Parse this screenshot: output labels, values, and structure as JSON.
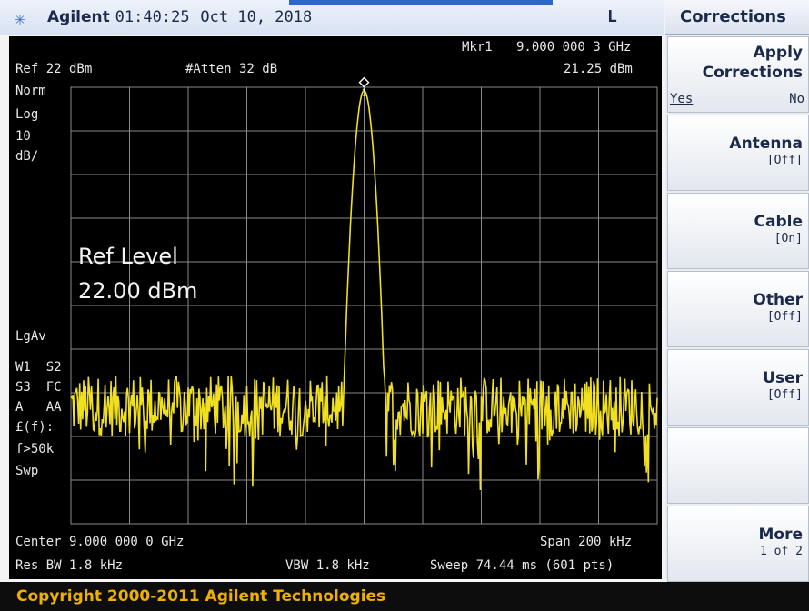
{
  "header": {
    "icon": "sun-burst-icon",
    "brand": "Agilent",
    "time": "01:40:25",
    "date": "Oct 10, 2018",
    "indicator": "L"
  },
  "marker": {
    "label": "Mkr1",
    "frequency": "9.000 000 3 GHz",
    "amplitude": "21.25 dBm",
    "marker_number": "1"
  },
  "settings": {
    "ref": "Ref 22 dBm",
    "atten": "#Atten 32 dB",
    "norm": "Norm",
    "log": "Log",
    "scale_val": "10",
    "scale_unit": "dB/",
    "ref_level_title": "Ref Level",
    "ref_level_value": "22.00 dBm",
    "lgav": "LgAv",
    "w1": "W1  S2",
    "s3": "S3  FC",
    "a": "A   AA",
    "ef": "£(f):",
    "f50": "f>50k",
    "swp": "Swp"
  },
  "footer": {
    "center": "Center 9.000 000 0 GHz",
    "span": "Span 200 kHz",
    "res_bw": "Res BW 1.8 kHz",
    "vbw": "VBW 1.8 kHz",
    "sweep": "Sweep 74.44 ms (601 pts)"
  },
  "menu": {
    "title": "Corrections",
    "keys": [
      {
        "label1": "Apply",
        "label2": "Corrections",
        "yes": "Yes",
        "no": "No"
      },
      {
        "label1": "Antenna",
        "sub": "[Off]"
      },
      {
        "label1": "Cable",
        "sub": "[On]"
      },
      {
        "label1": "Other",
        "sub": "[Off]"
      },
      {
        "label1": "User",
        "sub": "[Off]"
      },
      {
        "label1": ""
      },
      {
        "label1": "More",
        "sub": "1 of 2"
      }
    ]
  },
  "copyright": "Copyright 2000-2011 Agilent Technologies",
  "colors": {
    "trace": "#f0e020",
    "grid": "#8a8a8a",
    "screen_bg": "#000000",
    "copyright_text": "#f0b000",
    "header_text": "#1b2a4a"
  },
  "chart_data": {
    "type": "line",
    "x_center_ghz": 9.0,
    "span_khz": 200,
    "x_range_khz": [
      -100,
      100
    ],
    "y_range_dbm": [
      -78,
      22
    ],
    "ref_dbm": 22,
    "scale_db_per_div": 10,
    "points": 601,
    "peak": {
      "x_khz": 0,
      "y_dbm": 21.25
    },
    "noise_floor_dbm": -51,
    "grid": true
  }
}
